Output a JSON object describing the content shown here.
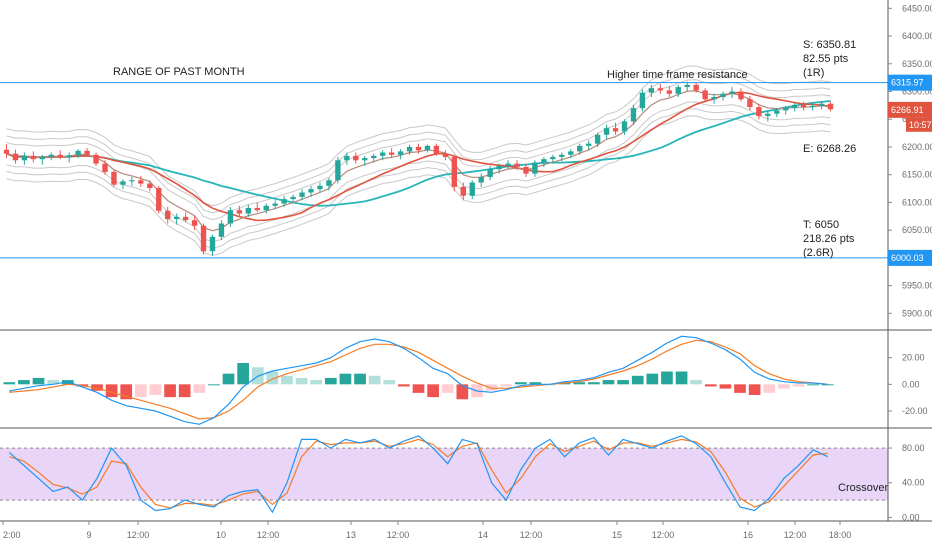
{
  "chart_data": [
    {
      "type": "candlestick",
      "title": "",
      "ylim": [
        5870,
        6465
      ],
      "price_ticks": [
        "6450.00",
        "6400.00",
        "6350.00",
        "6300.00",
        "6250.00",
        "6200.00",
        "6150.00",
        "6100.00",
        "6050.00",
        "6000.00",
        "5950.00",
        "5900.00"
      ],
      "price_tick_values": [
        6450,
        6400,
        6350,
        6300,
        6250,
        6200,
        6150,
        6100,
        6050,
        6000,
        5950,
        5900
      ],
      "candles": [
        {
          "o": 6195,
          "h": 6205,
          "l": 6180,
          "c": 6188
        },
        {
          "o": 6188,
          "h": 6195,
          "l": 6170,
          "c": 6176
        },
        {
          "o": 6176,
          "h": 6190,
          "l": 6168,
          "c": 6184
        },
        {
          "o": 6184,
          "h": 6192,
          "l": 6172,
          "c": 6178
        },
        {
          "o": 6178,
          "h": 6186,
          "l": 6168,
          "c": 6182
        },
        {
          "o": 6182,
          "h": 6190,
          "l": 6176,
          "c": 6186
        },
        {
          "o": 6186,
          "h": 6194,
          "l": 6178,
          "c": 6181
        },
        {
          "o": 6181,
          "h": 6190,
          "l": 6172,
          "c": 6185
        },
        {
          "o": 6185,
          "h": 6196,
          "l": 6180,
          "c": 6193
        },
        {
          "o": 6193,
          "h": 6198,
          "l": 6182,
          "c": 6186
        },
        {
          "o": 6186,
          "h": 6190,
          "l": 6166,
          "c": 6170
        },
        {
          "o": 6170,
          "h": 6176,
          "l": 6150,
          "c": 6155
        },
        {
          "o": 6155,
          "h": 6160,
          "l": 6128,
          "c": 6132
        },
        {
          "o": 6132,
          "h": 6142,
          "l": 6124,
          "c": 6138
        },
        {
          "o": 6138,
          "h": 6146,
          "l": 6130,
          "c": 6140
        },
        {
          "o": 6140,
          "h": 6148,
          "l": 6128,
          "c": 6134
        },
        {
          "o": 6134,
          "h": 6140,
          "l": 6120,
          "c": 6126
        },
        {
          "o": 6126,
          "h": 6130,
          "l": 6080,
          "c": 6085
        },
        {
          "o": 6085,
          "h": 6092,
          "l": 6062,
          "c": 6070
        },
        {
          "o": 6070,
          "h": 6080,
          "l": 6060,
          "c": 6074
        },
        {
          "o": 6074,
          "h": 6082,
          "l": 6064,
          "c": 6068
        },
        {
          "o": 6068,
          "h": 6075,
          "l": 6050,
          "c": 6058
        },
        {
          "o": 6058,
          "h": 6062,
          "l": 6006,
          "c": 6012
        },
        {
          "o": 6012,
          "h": 6042,
          "l": 6004,
          "c": 6038
        },
        {
          "o": 6038,
          "h": 6068,
          "l": 6032,
          "c": 6062
        },
        {
          "o": 6062,
          "h": 6092,
          "l": 6056,
          "c": 6086
        },
        {
          "o": 6086,
          "h": 6094,
          "l": 6074,
          "c": 6080
        },
        {
          "o": 6080,
          "h": 6096,
          "l": 6074,
          "c": 6090
        },
        {
          "o": 6090,
          "h": 6100,
          "l": 6082,
          "c": 6086
        },
        {
          "o": 6086,
          "h": 6098,
          "l": 6080,
          "c": 6094
        },
        {
          "o": 6094,
          "h": 6104,
          "l": 6088,
          "c": 6098
        },
        {
          "o": 6098,
          "h": 6112,
          "l": 6092,
          "c": 6106
        },
        {
          "o": 6106,
          "h": 6114,
          "l": 6098,
          "c": 6110
        },
        {
          "o": 6110,
          "h": 6124,
          "l": 6104,
          "c": 6118
        },
        {
          "o": 6118,
          "h": 6130,
          "l": 6110,
          "c": 6124
        },
        {
          "o": 6124,
          "h": 6136,
          "l": 6118,
          "c": 6130
        },
        {
          "o": 6130,
          "h": 6144,
          "l": 6122,
          "c": 6140
        },
        {
          "o": 6140,
          "h": 6182,
          "l": 6134,
          "c": 6176
        },
        {
          "o": 6176,
          "h": 6190,
          "l": 6168,
          "c": 6184
        },
        {
          "o": 6184,
          "h": 6190,
          "l": 6170,
          "c": 6176
        },
        {
          "o": 6176,
          "h": 6184,
          "l": 6166,
          "c": 6180
        },
        {
          "o": 6180,
          "h": 6188,
          "l": 6172,
          "c": 6184
        },
        {
          "o": 6184,
          "h": 6194,
          "l": 6176,
          "c": 6190
        },
        {
          "o": 6190,
          "h": 6198,
          "l": 6180,
          "c": 6186
        },
        {
          "o": 6186,
          "h": 6196,
          "l": 6178,
          "c": 6192
        },
        {
          "o": 6192,
          "h": 6204,
          "l": 6186,
          "c": 6200
        },
        {
          "o": 6200,
          "h": 6206,
          "l": 6188,
          "c": 6194
        },
        {
          "o": 6194,
          "h": 6204,
          "l": 6190,
          "c": 6202
        },
        {
          "o": 6202,
          "h": 6206,
          "l": 6184,
          "c": 6188
        },
        {
          "o": 6188,
          "h": 6194,
          "l": 6176,
          "c": 6182
        },
        {
          "o": 6182,
          "h": 6186,
          "l": 6120,
          "c": 6128
        },
        {
          "o": 6128,
          "h": 6136,
          "l": 6104,
          "c": 6112
        },
        {
          "o": 6112,
          "h": 6140,
          "l": 6106,
          "c": 6136
        },
        {
          "o": 6136,
          "h": 6152,
          "l": 6128,
          "c": 6146
        },
        {
          "o": 6146,
          "h": 6166,
          "l": 6140,
          "c": 6160
        },
        {
          "o": 6160,
          "h": 6170,
          "l": 6152,
          "c": 6166
        },
        {
          "o": 6166,
          "h": 6176,
          "l": 6160,
          "c": 6170
        },
        {
          "o": 6170,
          "h": 6176,
          "l": 6158,
          "c": 6164
        },
        {
          "o": 6164,
          "h": 6170,
          "l": 6146,
          "c": 6152
        },
        {
          "o": 6152,
          "h": 6176,
          "l": 6146,
          "c": 6172
        },
        {
          "o": 6172,
          "h": 6182,
          "l": 6164,
          "c": 6178
        },
        {
          "o": 6178,
          "h": 6186,
          "l": 6170,
          "c": 6182
        },
        {
          "o": 6182,
          "h": 6190,
          "l": 6174,
          "c": 6186
        },
        {
          "o": 6186,
          "h": 6196,
          "l": 6180,
          "c": 6192
        },
        {
          "o": 6192,
          "h": 6206,
          "l": 6186,
          "c": 6202
        },
        {
          "o": 6202,
          "h": 6212,
          "l": 6194,
          "c": 6206
        },
        {
          "o": 6206,
          "h": 6226,
          "l": 6200,
          "c": 6222
        },
        {
          "o": 6222,
          "h": 6240,
          "l": 6214,
          "c": 6234
        },
        {
          "o": 6234,
          "h": 6244,
          "l": 6222,
          "c": 6228
        },
        {
          "o": 6228,
          "h": 6250,
          "l": 6222,
          "c": 6246
        },
        {
          "o": 6246,
          "h": 6276,
          "l": 6240,
          "c": 6270
        },
        {
          "o": 6270,
          "h": 6304,
          "l": 6264,
          "c": 6298
        },
        {
          "o": 6298,
          "h": 6312,
          "l": 6290,
          "c": 6306
        },
        {
          "o": 6306,
          "h": 6314,
          "l": 6296,
          "c": 6302
        },
        {
          "o": 6302,
          "h": 6310,
          "l": 6290,
          "c": 6296
        },
        {
          "o": 6296,
          "h": 6312,
          "l": 6290,
          "c": 6308
        },
        {
          "o": 6308,
          "h": 6318,
          "l": 6300,
          "c": 6312
        },
        {
          "o": 6312,
          "h": 6316,
          "l": 6298,
          "c": 6302
        },
        {
          "o": 6302,
          "h": 6306,
          "l": 6280,
          "c": 6286
        },
        {
          "o": 6286,
          "h": 6296,
          "l": 6278,
          "c": 6290
        },
        {
          "o": 6290,
          "h": 6300,
          "l": 6284,
          "c": 6296
        },
        {
          "o": 6296,
          "h": 6308,
          "l": 6288,
          "c": 6300
        },
        {
          "o": 6300,
          "h": 6306,
          "l": 6282,
          "c": 6286
        },
        {
          "o": 6286,
          "h": 6292,
          "l": 6266,
          "c": 6272
        },
        {
          "o": 6272,
          "h": 6278,
          "l": 6250,
          "c": 6256
        },
        {
          "o": 6256,
          "h": 6266,
          "l": 6246,
          "c": 6260
        },
        {
          "o": 6260,
          "h": 6270,
          "l": 6254,
          "c": 6266
        },
        {
          "o": 6266,
          "h": 6274,
          "l": 6258,
          "c": 6270
        },
        {
          "o": 6270,
          "h": 6280,
          "l": 6264,
          "c": 6276
        },
        {
          "o": 6276,
          "h": 6282,
          "l": 6266,
          "c": 6272
        },
        {
          "o": 6272,
          "h": 6280,
          "l": 6266,
          "c": 6274
        },
        {
          "o": 6274,
          "h": 6282,
          "l": 6268,
          "c": 6278
        },
        {
          "o": 6278,
          "h": 6282,
          "l": 6264,
          "c": 6268
        }
      ],
      "horizontal_levels": [
        6315.97,
        6000.03
      ],
      "annotations": {
        "range_label": "RANGE OF PAST MONTH",
        "resistance_label": "Higher time frame resistance",
        "stop": [
          "S: 6350.81",
          "82.55 pts",
          "(1R)"
        ],
        "entry": "E: 6268.26",
        "target": [
          "T: 6050",
          "218.26 pts",
          "(2.6R)"
        ]
      },
      "price_tags": [
        {
          "value": 6315.97,
          "text": "6315.97",
          "color": "#2196f3"
        },
        {
          "value": 6266.91,
          "text": "6266.91",
          "color": "#e0533f"
        },
        {
          "value": 6000.03,
          "text": "6000.03",
          "color": "#2196f3"
        }
      ],
      "countdown_tag": {
        "value": 6240,
        "text": "10:57",
        "color": "#e0533f"
      },
      "series_colors": {
        "ma_slow": "#26b5b8",
        "ma_fast": "#e0533f",
        "ema_mid": "#b58a7a",
        "envelope": "#c8c8c8",
        "up_candle": "#26a69a",
        "down_candle": "#ef5350"
      }
    },
    {
      "type": "histogram+line",
      "ylim": [
        -32,
        40
      ],
      "ticks": [
        "20.00",
        "0.00",
        "-20.00"
      ],
      "tick_values": [
        20,
        0,
        -20
      ],
      "macd": [
        -5,
        -3,
        -1,
        0,
        2,
        -2,
        -6,
        -12,
        -16,
        -18,
        -20,
        -24,
        -28,
        -30,
        -25,
        -15,
        -2,
        6,
        10,
        12,
        14,
        16,
        20,
        27,
        32,
        34,
        32,
        27,
        20,
        12,
        8,
        -1,
        -5,
        -6,
        -4,
        -1,
        0,
        0,
        2,
        3,
        5,
        9,
        12,
        18,
        24,
        31,
        36,
        35,
        31,
        26,
        19,
        9,
        4,
        2,
        1,
        1,
        0
      ],
      "signal": [
        -6,
        -5,
        -4,
        -2,
        0,
        -1,
        -3,
        -6,
        -9,
        -12,
        -15,
        -18,
        -22,
        -26,
        -25,
        -20,
        -12,
        -2,
        4,
        8,
        11,
        14,
        17,
        22,
        27,
        30,
        30,
        28,
        24,
        18,
        12,
        6,
        1,
        -3,
        -3,
        -2,
        -1,
        0,
        1,
        2,
        4,
        7,
        10,
        14,
        19,
        25,
        30,
        33,
        32,
        28,
        23,
        14,
        8,
        4,
        2,
        1,
        0
      ],
      "colors": {
        "macd": "#2196f3",
        "signal": "#f57c24",
        "hist_up_strong": "#26a69a",
        "hist_up_weak": "#b2dfdb",
        "hist_down_strong": "#ef5350",
        "hist_down_weak": "#ffcdd2"
      }
    },
    {
      "type": "line",
      "ylim": [
        -3,
        102
      ],
      "ticks": [
        "80.00",
        "40.00",
        "0.00"
      ],
      "tick_values": [
        80,
        40,
        0
      ],
      "band": [
        20,
        80
      ],
      "label": "Crossover",
      "k": [
        75,
        60,
        45,
        30,
        35,
        20,
        45,
        80,
        60,
        20,
        8,
        10,
        20,
        15,
        12,
        25,
        30,
        32,
        6,
        40,
        90,
        90,
        80,
        90,
        86,
        90,
        80,
        88,
        94,
        80,
        62,
        90,
        85,
        40,
        20,
        55,
        80,
        90,
        70,
        86,
        92,
        72,
        90,
        85,
        80,
        88,
        94,
        85,
        70,
        40,
        12,
        8,
        22,
        45,
        60,
        78,
        70
      ],
      "d": [
        70,
        65,
        52,
        38,
        34,
        27,
        35,
        65,
        62,
        35,
        15,
        11,
        16,
        16,
        14,
        20,
        27,
        30,
        15,
        28,
        70,
        88,
        84,
        86,
        86,
        88,
        82,
        85,
        90,
        84,
        70,
        82,
        86,
        55,
        28,
        45,
        70,
        85,
        76,
        82,
        88,
        78,
        86,
        86,
        82,
        86,
        90,
        87,
        76,
        52,
        22,
        12,
        18,
        36,
        54,
        72,
        74
      ],
      "colors": {
        "k": "#2196f3",
        "d": "#f57c24",
        "band_fill": "#e8d5f7"
      }
    }
  ],
  "time_axis": [
    "2:00",
    "9",
    "12:00",
    "10",
    "12:00",
    "13",
    "12:00",
    "14",
    "12:00",
    "15",
    "12:00",
    "16",
    "12:00",
    "18:00"
  ]
}
